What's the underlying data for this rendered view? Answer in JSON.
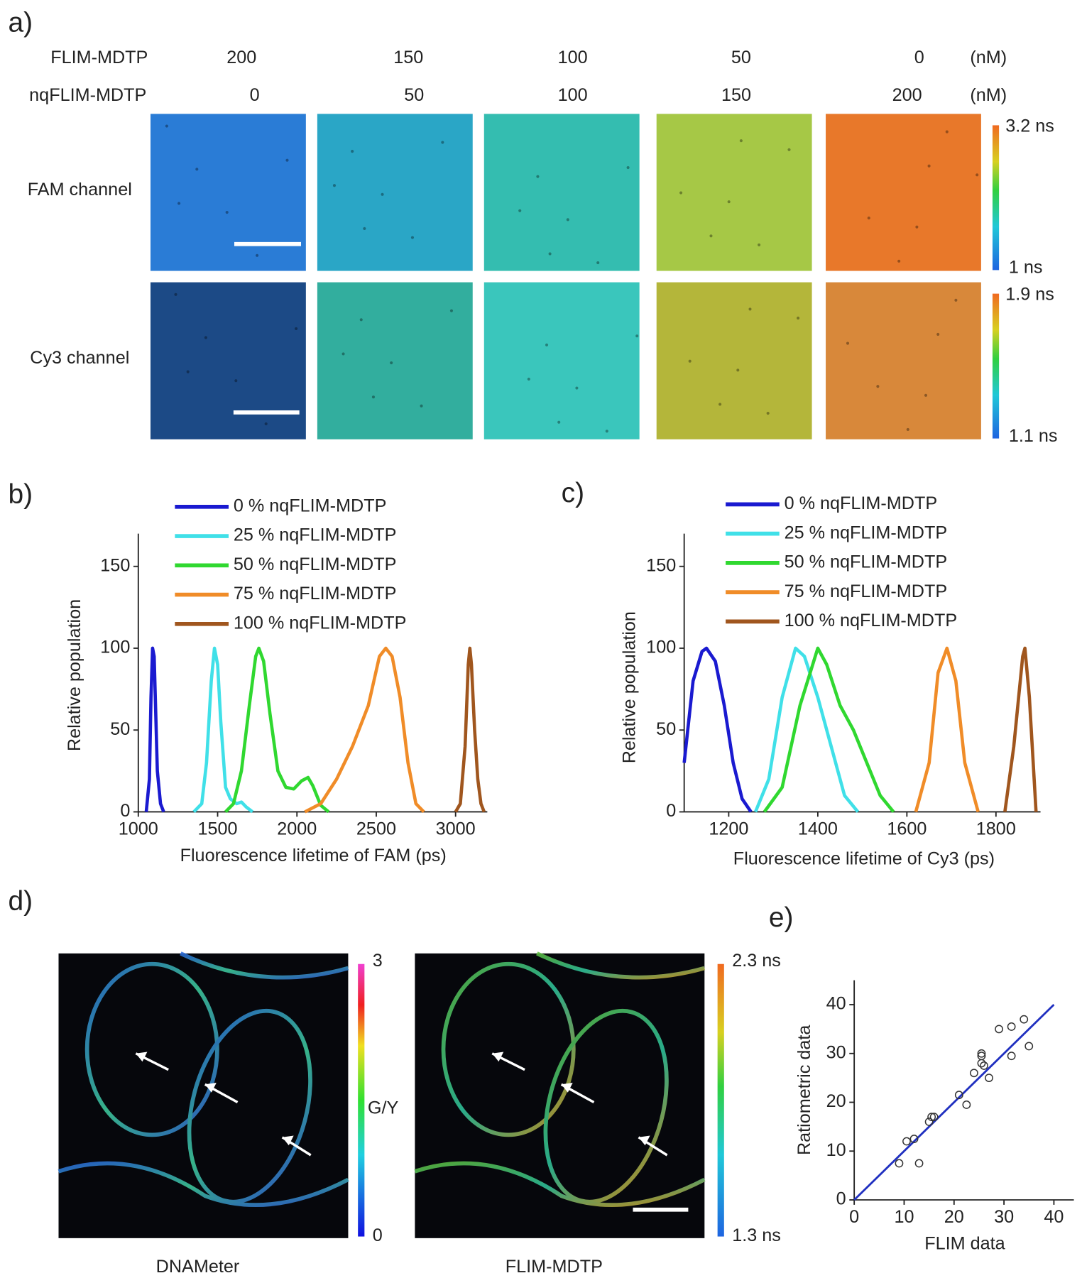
{
  "panel_a": {
    "label": "a)",
    "rows": [
      {
        "name": "FLIM-MDTP",
        "values": [
          200,
          150,
          100,
          50,
          0
        ],
        "unit": "(nM)"
      },
      {
        "name": "nqFLIM-MDTP",
        "values": [
          0,
          50,
          100,
          150,
          200
        ],
        "unit": "(nM)"
      }
    ],
    "channels": [
      {
        "name": "FAM channel",
        "colorbar_max": "3.2 ns",
        "colorbar_min": "1 ns"
      },
      {
        "name": "Cy3 channel",
        "colorbar_max": "1.9 ns",
        "colorbar_min": "1.1 ns"
      }
    ]
  },
  "panel_d": {
    "label": "d)",
    "images": [
      {
        "caption": "DNAMeter",
        "colorbar_max": "3",
        "colorbar_mid": "G/Y",
        "colorbar_min": "0"
      },
      {
        "caption": "FLIM-MDTP",
        "colorbar_max": "2.3 ns",
        "colorbar_min": "1.3 ns"
      }
    ]
  },
  "chart_data": [
    {
      "type": "line",
      "panel_label": "b)",
      "x_label": "Fluorescence lifetime of FAM (ps)",
      "y_label": "Relative population",
      "xlim": [
        1000,
        3200
      ],
      "ylim": [
        0,
        170
      ],
      "xticks": [
        1000,
        1500,
        2000,
        2500,
        3000
      ],
      "yticks": [
        0,
        50,
        100,
        150
      ],
      "series": [
        {
          "name": "0 % nqFLIM-MDTP",
          "color": "#1a1ad0",
          "x": [
            1050,
            1070,
            1080,
            1090,
            1100,
            1110,
            1120,
            1140,
            1160
          ],
          "values": [
            0,
            20,
            70,
            100,
            95,
            60,
            25,
            5,
            0
          ]
        },
        {
          "name": "25 % nqFLIM-MDTP",
          "color": "#40e0e8",
          "x": [
            1350,
            1400,
            1430,
            1460,
            1480,
            1500,
            1520,
            1550,
            1580,
            1620,
            1650,
            1680,
            1720
          ],
          "values": [
            0,
            5,
            30,
            80,
            100,
            90,
            55,
            15,
            8,
            5,
            6,
            3,
            0
          ]
        },
        {
          "name": "50 % nqFLIM-MDTP",
          "color": "#30d830",
          "x": [
            1550,
            1600,
            1650,
            1700,
            1740,
            1760,
            1790,
            1830,
            1880,
            1930,
            1980,
            2030,
            2070,
            2100,
            2150,
            2200
          ],
          "values": [
            0,
            5,
            25,
            65,
            95,
            100,
            92,
            60,
            25,
            15,
            14,
            19,
            21,
            16,
            4,
            0
          ]
        },
        {
          "name": "75 % nqFLIM-MDTP",
          "color": "#f08c28",
          "x": [
            2050,
            2150,
            2250,
            2350,
            2450,
            2520,
            2560,
            2600,
            2650,
            2700,
            2750,
            2800
          ],
          "values": [
            0,
            5,
            20,
            40,
            65,
            95,
            100,
            95,
            70,
            30,
            5,
            0
          ]
        },
        {
          "name": "100 % nqFLIM-MDTP",
          "color": "#a0561e",
          "x": [
            3000,
            3030,
            3060,
            3080,
            3090,
            3100,
            3120,
            3140,
            3160,
            3180
          ],
          "values": [
            0,
            5,
            40,
            90,
            100,
            90,
            50,
            20,
            5,
            0
          ]
        }
      ]
    },
    {
      "type": "line",
      "panel_label": "c)",
      "x_label": "Fluorescence lifetime of Cy3 (ps)",
      "y_label": "Relative population",
      "xlim": [
        1100,
        1900
      ],
      "ylim": [
        0,
        170
      ],
      "xticks": [
        1200,
        1400,
        1600,
        1800
      ],
      "yticks": [
        0,
        50,
        100,
        150
      ],
      "series": [
        {
          "name": "0 % nqFLIM-MDTP",
          "color": "#1a1ad0",
          "x": [
            1100,
            1120,
            1140,
            1150,
            1170,
            1190,
            1210,
            1230,
            1250
          ],
          "values": [
            30,
            80,
            98,
            100,
            92,
            65,
            30,
            8,
            0
          ]
        },
        {
          "name": "25 % nqFLIM-MDTP",
          "color": "#40e0e8",
          "x": [
            1260,
            1290,
            1320,
            1350,
            1370,
            1400,
            1430,
            1460,
            1490
          ],
          "values": [
            0,
            20,
            70,
            100,
            95,
            70,
            40,
            10,
            0
          ]
        },
        {
          "name": "50 % nqFLIM-MDTP",
          "color": "#30d830",
          "x": [
            1280,
            1320,
            1360,
            1400,
            1420,
            1450,
            1480,
            1510,
            1540,
            1570
          ],
          "values": [
            0,
            15,
            65,
            100,
            90,
            65,
            50,
            30,
            10,
            0
          ]
        },
        {
          "name": "75 % nqFLIM-MDTP",
          "color": "#f08c28",
          "x": [
            1620,
            1650,
            1670,
            1690,
            1710,
            1730,
            1760
          ],
          "values": [
            0,
            30,
            85,
            100,
            80,
            30,
            0
          ]
        },
        {
          "name": "100 % nqFLIM-MDTP",
          "color": "#a0561e",
          "x": [
            1820,
            1840,
            1860,
            1865,
            1875,
            1890
          ],
          "values": [
            0,
            40,
            95,
            100,
            70,
            0
          ]
        }
      ]
    },
    {
      "type": "scatter",
      "panel_label": "e)",
      "x_label": "FLIM data",
      "y_label": "Ratiometric data",
      "xlim": [
        0,
        44
      ],
      "ylim": [
        0,
        45
      ],
      "xticks": [
        0,
        10,
        20,
        30,
        40
      ],
      "yticks": [
        0,
        10,
        20,
        30,
        40
      ],
      "color": "#333333",
      "x": [
        9,
        10.5,
        12,
        13,
        15,
        15.5,
        16,
        21,
        22.5,
        24,
        25.5,
        25.5,
        25.5,
        26,
        27,
        29,
        31.5,
        31.5,
        34,
        35
      ],
      "values": [
        7.5,
        12,
        12.5,
        7.5,
        16,
        17,
        17,
        21.5,
        19.5,
        26,
        29.5,
        30,
        28,
        27.5,
        25,
        35,
        35.5,
        29.5,
        37,
        31.5
      ],
      "fit": {
        "color": "#2030c0",
        "x": [
          0,
          40
        ],
        "values": [
          0,
          40
        ]
      }
    }
  ]
}
